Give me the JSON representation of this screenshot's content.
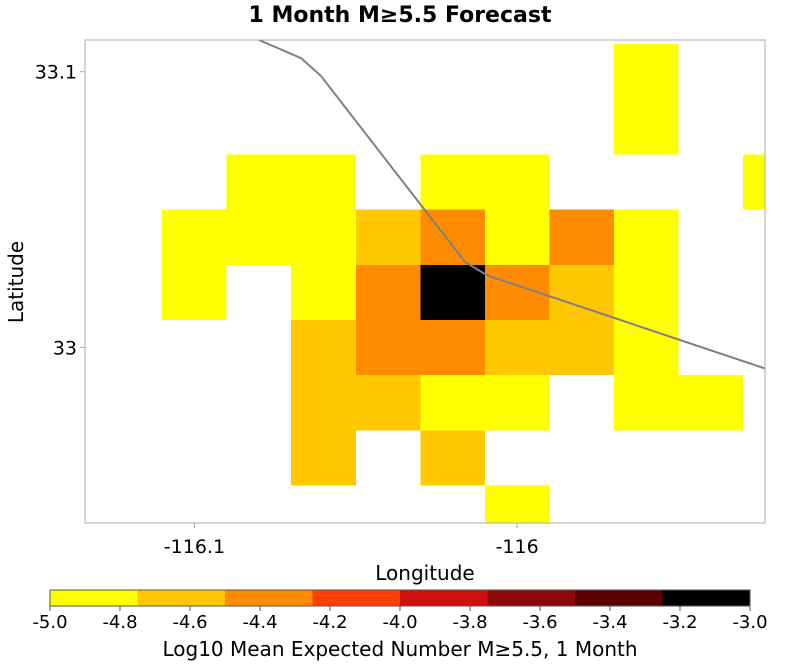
{
  "chart_data": {
    "type": "heatmap",
    "title": "1 Month M≥5.5 Forecast",
    "xlabel": "Longitude",
    "ylabel": "Latitude",
    "xlim": [
      -116.1339,
      -115.9232
    ],
    "ylim": [
      32.9364,
      33.1115
    ],
    "grid": false,
    "cell_size_deg": 0.02,
    "x_ticks": [
      {
        "value": -116.1,
        "label": "-116.1"
      },
      {
        "value": -116.0,
        "label": "-116"
      }
    ],
    "y_ticks": [
      {
        "value": 33.1,
        "label": "33.1"
      },
      {
        "value": 33.0,
        "label": "33"
      }
    ],
    "colorscale": {
      "label": "Log10 Mean Expected Number M≥5.5, 1 Month",
      "min": -5.0,
      "max": -3.0,
      "colors": [
        "#ffff00",
        "#ffc800",
        "#ff8c00",
        "#ff4000",
        "#d01010",
        "#8a0808",
        "#5a0000",
        "#000000"
      ],
      "tick_values": [
        -5.0,
        -4.8,
        -4.6,
        -4.4,
        -4.2,
        -4.0,
        -3.8,
        -3.6,
        -3.4,
        -3.2,
        -3.0
      ],
      "tick_labels": [
        "-5.0",
        "-4.8",
        "-4.6",
        "-4.4",
        "-4.2",
        "-4.0",
        "-3.8",
        "-3.6",
        "-3.4",
        "-3.2",
        "-3.0"
      ]
    },
    "cells": [
      {
        "lon": -115.96,
        "lat": 33.1,
        "value": -4.9
      },
      {
        "lon": -115.96,
        "lat": 33.08,
        "value": -4.9
      },
      {
        "lon": -116.08,
        "lat": 33.06,
        "value": -4.9
      },
      {
        "lon": -116.06,
        "lat": 33.06,
        "value": -4.9
      },
      {
        "lon": -116.02,
        "lat": 33.06,
        "value": -4.9
      },
      {
        "lon": -116.0,
        "lat": 33.06,
        "value": -4.9
      },
      {
        "lon": -115.92,
        "lat": 33.06,
        "value": -4.9
      },
      {
        "lon": -116.1,
        "lat": 33.04,
        "value": -4.9
      },
      {
        "lon": -116.08,
        "lat": 33.04,
        "value": -4.9
      },
      {
        "lon": -116.06,
        "lat": 33.04,
        "value": -4.9
      },
      {
        "lon": -116.04,
        "lat": 33.04,
        "value": -4.7
      },
      {
        "lon": -116.02,
        "lat": 33.04,
        "value": -4.5
      },
      {
        "lon": -116.0,
        "lat": 33.04,
        "value": -4.9
      },
      {
        "lon": -115.98,
        "lat": 33.04,
        "value": -4.5
      },
      {
        "lon": -115.96,
        "lat": 33.04,
        "value": -4.9
      },
      {
        "lon": -116.1,
        "lat": 33.02,
        "value": -4.9
      },
      {
        "lon": -116.06,
        "lat": 33.02,
        "value": -4.9
      },
      {
        "lon": -116.04,
        "lat": 33.02,
        "value": -4.3
      },
      {
        "lon": -116.02,
        "lat": 33.02,
        "value": -3.1
      },
      {
        "lon": -116.0,
        "lat": 33.02,
        "value": -4.5
      },
      {
        "lon": -115.98,
        "lat": 33.02,
        "value": -4.7
      },
      {
        "lon": -115.96,
        "lat": 33.02,
        "value": -4.9
      },
      {
        "lon": -116.06,
        "lat": 33.0,
        "value": -4.7
      },
      {
        "lon": -116.04,
        "lat": 33.0,
        "value": -4.5
      },
      {
        "lon": -116.02,
        "lat": 33.0,
        "value": -4.3
      },
      {
        "lon": -116.0,
        "lat": 33.0,
        "value": -4.7
      },
      {
        "lon": -115.98,
        "lat": 33.0,
        "value": -4.7
      },
      {
        "lon": -115.96,
        "lat": 33.0,
        "value": -4.9
      },
      {
        "lon": -116.06,
        "lat": 32.98,
        "value": -4.7
      },
      {
        "lon": -116.04,
        "lat": 32.98,
        "value": -4.7
      },
      {
        "lon": -116.02,
        "lat": 32.98,
        "value": -4.9
      },
      {
        "lon": -116.0,
        "lat": 32.98,
        "value": -4.9
      },
      {
        "lon": -115.96,
        "lat": 32.98,
        "value": -4.9
      },
      {
        "lon": -115.94,
        "lat": 32.98,
        "value": -4.9
      },
      {
        "lon": -116.06,
        "lat": 32.96,
        "value": -4.7
      },
      {
        "lon": -116.02,
        "lat": 32.96,
        "value": -4.7
      },
      {
        "lon": -116.0,
        "lat": 32.94,
        "value": -4.9
      }
    ],
    "fault_trace": [
      {
        "lon": -116.08,
        "lat": 33.1115
      },
      {
        "lon": -116.0669,
        "lat": 33.1049
      },
      {
        "lon": -116.0608,
        "lat": 33.0985
      },
      {
        "lon": -116.0161,
        "lat": 33.031
      },
      {
        "lon": -116.0093,
        "lat": 33.0262
      },
      {
        "lon": -115.9232,
        "lat": 32.9924
      }
    ]
  }
}
